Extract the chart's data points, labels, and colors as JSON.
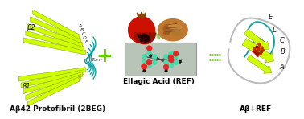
{
  "background_color": "#ffffff",
  "label_left": "Aβ42 Protofibril (2BEG)",
  "label_center": "Ellagic Acid (REF)",
  "label_right": "Aβ+REF",
  "plus_color": "#66cc00",
  "equal_color": "#88cc44",
  "arrow_color": "#99cc66",
  "sheet_color": "#ccff00",
  "loop_color": "#009999",
  "mol_bg_color": "#b8c4b8",
  "carbon_color": "#44ddaa",
  "oxygen_color": "#ee2222",
  "black_color": "#111111",
  "gray_loop_color": "#aaaaaa",
  "strand_labels": [
    "E",
    "D",
    "C",
    "B",
    "A"
  ],
  "beta2_label": "β2",
  "beta1_label": "β1",
  "turn_label": "Turn",
  "font_label": 6.5,
  "font_bold_label": 6.5
}
